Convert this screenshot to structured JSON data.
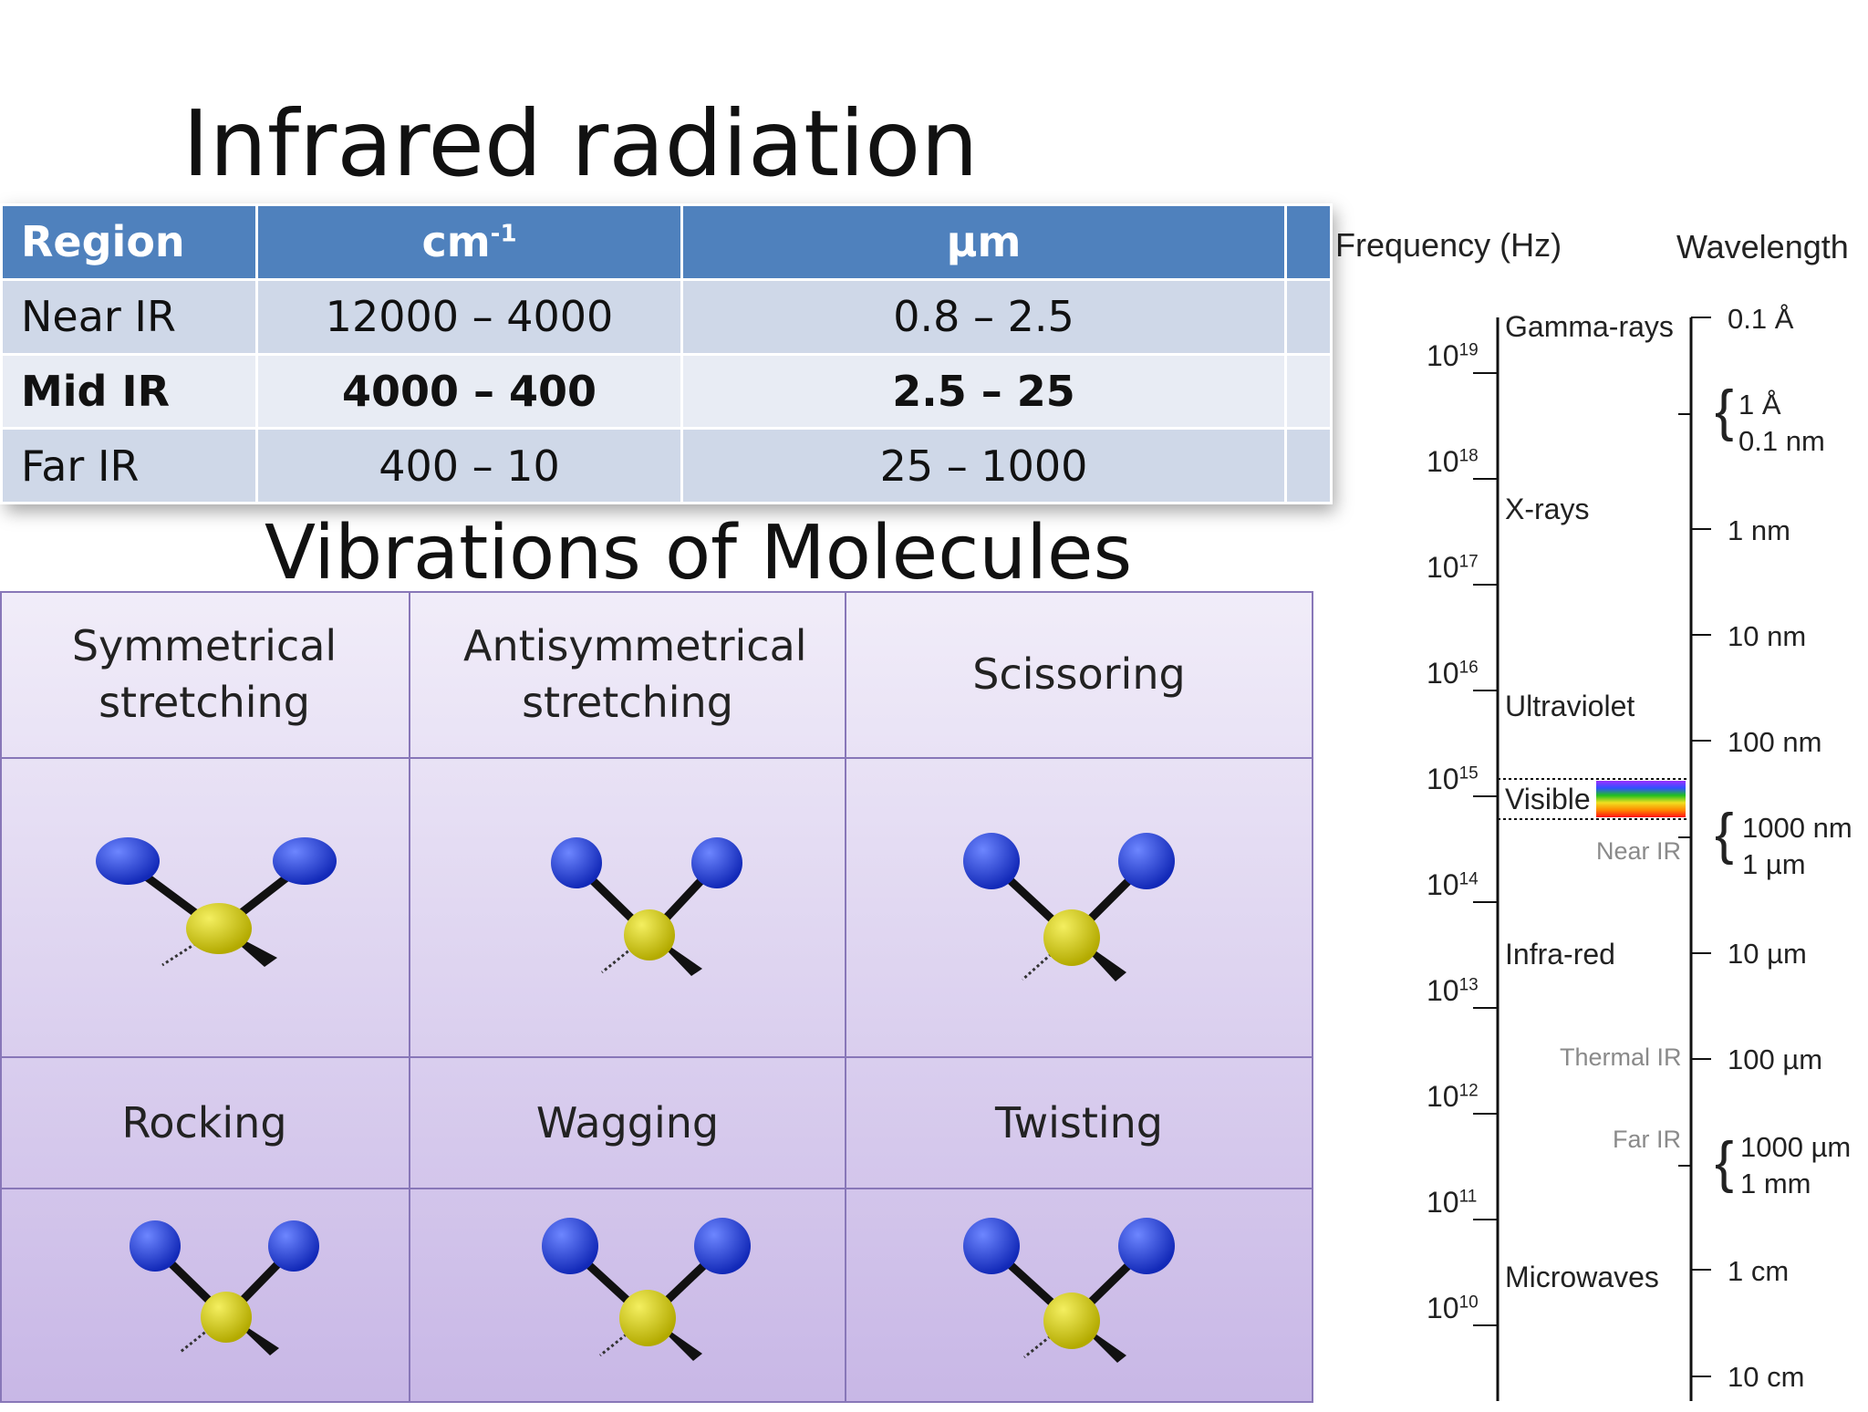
{
  "title": "Infrared radiation",
  "subtitle": "Vibrations of Molecules",
  "ir_table": {
    "headers": [
      "Region",
      "cm",
      "-1",
      "µm"
    ],
    "rows": [
      {
        "region": "Near IR",
        "cm": "12000 – 4000",
        "um": "0.8 – 2.5"
      },
      {
        "region": "Mid IR",
        "cm": "4000 – 400",
        "um": "2.5 – 25"
      },
      {
        "region": "Far IR",
        "cm": "400 – 10",
        "um": "25 – 1000"
      }
    ]
  },
  "vibrations": {
    "row1": [
      "Symmetrical stretching",
      "Antisymmetrical stretching",
      "Scissoring"
    ],
    "row2": [
      "Rocking",
      "Wagging",
      "Twisting"
    ]
  },
  "spectrum": {
    "freq_header": "Frequency (Hz)",
    "wl_header": "Wavelength",
    "freq_base": "10",
    "freq_exps": [
      "19",
      "18",
      "17",
      "16",
      "15",
      "14",
      "13",
      "12",
      "11",
      "10"
    ],
    "bands": {
      "gamma": "Gamma-rays",
      "xrays": "X-rays",
      "uv": "Ultraviolet",
      "visible": "Visible",
      "near_ir": "Near IR",
      "infrared": "Infra-red",
      "thermal_ir": "Thermal IR",
      "far_ir": "Far IR",
      "microwaves": "Microwaves"
    },
    "wavelengths": {
      "w1": "0.1 Å",
      "w2a": "1 Å",
      "w2b": "0.1 nm",
      "w3": "1 nm",
      "w4": "10 nm",
      "w5": "100 nm",
      "w6a": "1000 nm",
      "w6b": "1 µm",
      "w7": "10 µm",
      "w8": "100 µm",
      "w9a": "1000 µm",
      "w9b": "1 mm",
      "w10": "1 cm",
      "w11": "10 cm"
    }
  },
  "colors": {
    "header_blue": "#4f81bd",
    "row_dark": "#cfd8e8",
    "row_light": "#e8ecf4",
    "atom_blue": "#1f3fd6",
    "atom_yellow": "#d6cc16",
    "grid_line": "#8877b8"
  }
}
